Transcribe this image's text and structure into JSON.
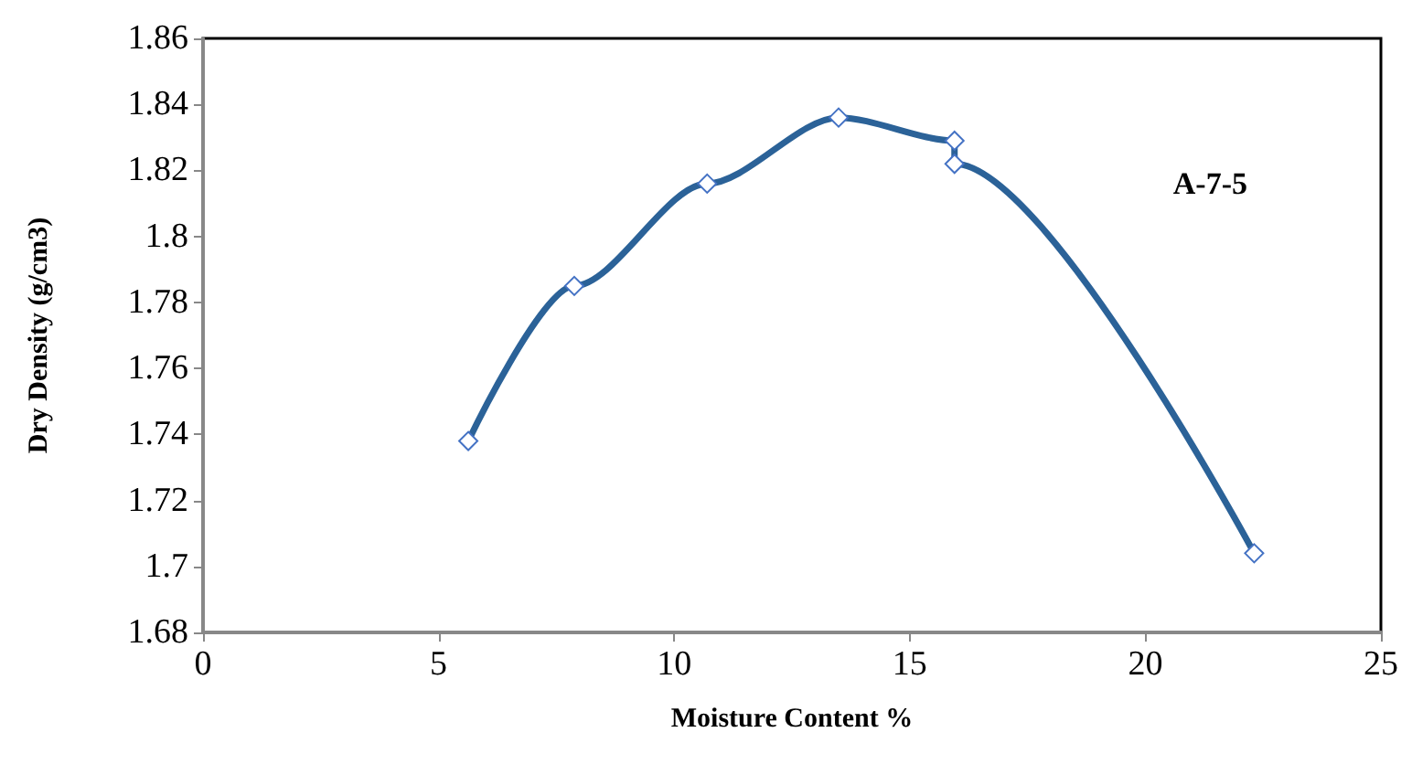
{
  "chart_data": {
    "type": "line",
    "xlabel": "Moisture Content %",
    "ylabel": "Dry Density (g/cm3)",
    "annotations": [
      "A-7-5"
    ],
    "series": [
      {
        "color": "#2b6298",
        "x": [
          5.63,
          7.88,
          10.7,
          13.49,
          15.95,
          15.95,
          22.31
        ],
        "values": [
          1.738,
          1.785,
          1.816,
          1.836,
          1.829,
          1.822,
          1.704
        ]
      }
    ],
    "xlim": [
      0,
      25
    ],
    "xticks": [
      0,
      5,
      10,
      15,
      20,
      25
    ],
    "ylim": [
      1.68,
      1.86
    ],
    "yticks": [
      1.68,
      1.7,
      1.72,
      1.74,
      1.76,
      1.78,
      1.8,
      1.82,
      1.84,
      1.86
    ],
    "marker": "diamond",
    "grid": false
  }
}
